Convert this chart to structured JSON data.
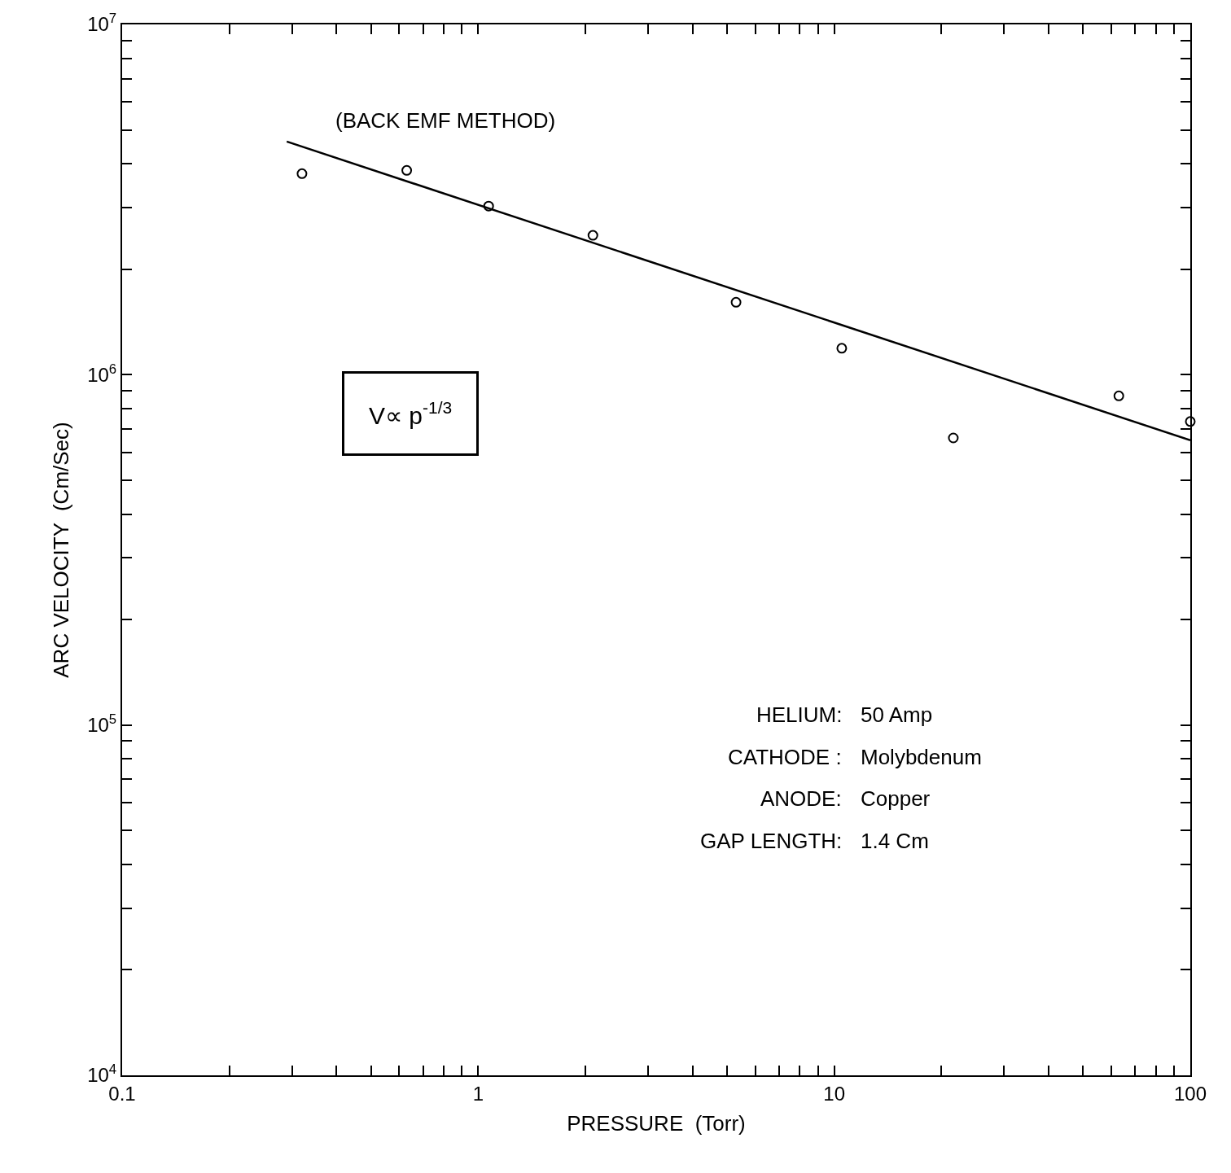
{
  "chart_data": {
    "type": "scatter",
    "xlabel": "PRESSURE  (Torr)",
    "ylabel": "ARC VELOCITY  (Cm/Sec)",
    "log": "xy",
    "marker": "circle",
    "xlim": [
      0.1,
      100
    ],
    "ylim": [
      10000,
      10000000
    ],
    "xticks": [
      {
        "value": 0.1,
        "label": "0.1"
      },
      {
        "value": 0.2,
        "label": null
      },
      {
        "value": 0.3,
        "label": null
      },
      {
        "value": 0.4,
        "label": null
      },
      {
        "value": 0.5,
        "label": null
      },
      {
        "value": 0.6,
        "label": null
      },
      {
        "value": 0.7,
        "label": null
      },
      {
        "value": 0.8,
        "label": null
      },
      {
        "value": 0.9,
        "label": null
      },
      1,
      {
        "value": 2,
        "label": null
      },
      {
        "value": 3,
        "label": null
      },
      {
        "value": 4,
        "label": null
      },
      {
        "value": 5,
        "label": null
      },
      {
        "value": 6,
        "label": null
      },
      {
        "value": 7,
        "label": null
      },
      {
        "value": 8,
        "label": null
      },
      {
        "value": 9,
        "label": null
      },
      10,
      {
        "value": 20,
        "label": null
      },
      {
        "value": 30,
        "label": null
      },
      {
        "value": 40,
        "label": null
      },
      {
        "value": 50,
        "label": null
      },
      {
        "value": 60,
        "label": null
      },
      {
        "value": 70,
        "label": null
      },
      {
        "value": 80,
        "label": null
      },
      {
        "value": 90,
        "label": null
      },
      100
    ],
    "yticks": [
      {
        "value": 10000,
        "label": "10$^{4}$"
      },
      {
        "value": 20000,
        "label": null
      },
      {
        "value": 30000,
        "label": null
      },
      {
        "value": 40000,
        "label": null
      },
      {
        "value": 50000,
        "label": null
      },
      {
        "value": 60000,
        "label": null
      },
      {
        "value": 70000,
        "label": null
      },
      {
        "value": 80000,
        "label": null
      },
      {
        "value": 90000,
        "label": null
      },
      {
        "value": 100000,
        "label": "10$^{5}$"
      },
      {
        "value": 200000,
        "label": null
      },
      {
        "value": 300000,
        "label": null
      },
      {
        "value": 400000,
        "label": null
      },
      {
        "value": 500000,
        "label": null
      },
      {
        "value": 600000,
        "label": null
      },
      {
        "value": 700000,
        "label": null
      },
      {
        "value": 800000,
        "label": null
      },
      {
        "value": 900000,
        "label": null
      },
      {
        "value": 1000000,
        "label": "10$^{6}$"
      },
      {
        "value": 2000000,
        "label": null
      },
      {
        "value": 3000000,
        "label": null
      },
      {
        "value": 4000000,
        "label": null
      },
      {
        "value": 5000000,
        "label": null
      },
      {
        "value": 6000000,
        "label": null
      },
      {
        "value": 7000000,
        "label": null
      },
      {
        "value": 8000000,
        "label": null
      },
      {
        "value": 9000000,
        "label": null
      },
      {
        "value": 10000000,
        "label": "10$^{7}$"
      }
    ],
    "series": [
      {
        "color": "#000000",
        "x": [
          0.32,
          0.63,
          1.07,
          2.1,
          5.3,
          10.5,
          21.6,
          63,
          100
        ],
        "values": [
          3750000,
          3830000,
          3030000,
          2500000,
          1610000,
          1190000,
          660000,
          870000,
          735000
        ]
      },
      {
        "type": "line",
        "color": "#000000",
        "marker": "none",
        "x": [
          0.29,
          100
        ],
        "values": [
          4630000,
          650000
        ]
      }
    ],
    "annotations": [
      "(BACK EMF METHOD)",
      "V∝ p$^{-1/3}$",
      "HELIUM:  50 Amp",
      "CATHODE :  Molybdenum",
      "ANODE:  Copper",
      "GAP LENGTH:  1.4 Cm"
    ]
  }
}
